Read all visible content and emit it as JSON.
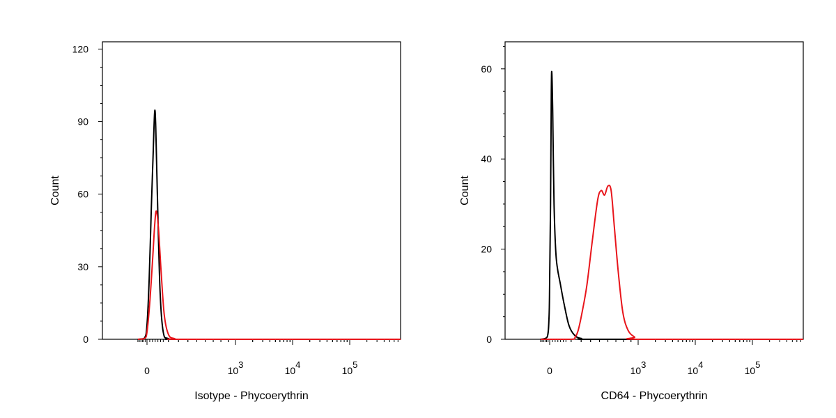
{
  "chart_data": [
    {
      "type": "line",
      "title": "",
      "xlabel": "Isotype - Phycoerythrin",
      "ylabel": "Count",
      "x_scale": "biexponential",
      "x_ticks": [
        {
          "value": 0,
          "label": "0",
          "exp": ""
        },
        {
          "value": 1000,
          "label": "10",
          "exp": "3"
        },
        {
          "value": 10000,
          "label": "10",
          "exp": "4"
        },
        {
          "value": 100000,
          "label": "10",
          "exp": "5"
        }
      ],
      "y_ticks": [
        0,
        30,
        60,
        90,
        120
      ],
      "ylim": [
        0,
        123
      ],
      "grid": false,
      "legend": "none",
      "series": [
        {
          "color": "#000000",
          "points": [
            [
              -150,
              0
            ],
            [
              -40,
              0.5
            ],
            [
              0,
              6
            ],
            [
              20,
              25
            ],
            [
              40,
              55
            ],
            [
              55,
              75
            ],
            [
              70,
              94
            ],
            [
              80,
              88
            ],
            [
              95,
              60
            ],
            [
              120,
              20
            ],
            [
              150,
              3
            ],
            [
              200,
              0.3
            ],
            [
              400,
              0
            ],
            [
              1000000,
              0
            ]
          ]
        },
        {
          "color": "#e8151b",
          "points": [
            [
              -150,
              0
            ],
            [
              -40,
              0.3
            ],
            [
              0,
              3
            ],
            [
              25,
              15
            ],
            [
              50,
              32
            ],
            [
              70,
              47
            ],
            [
              85,
              53
            ],
            [
              105,
              46
            ],
            [
              130,
              28
            ],
            [
              160,
              10
            ],
            [
              200,
              2
            ],
            [
              260,
              0.3
            ],
            [
              400,
              0
            ],
            [
              1000000,
              0
            ]
          ]
        }
      ]
    },
    {
      "type": "line",
      "title": "",
      "xlabel": "CD64 - Phycoerythrin",
      "ylabel": "Count",
      "x_scale": "biexponential",
      "x_ticks": [
        {
          "value": 0,
          "label": "0",
          "exp": ""
        },
        {
          "value": 1000,
          "label": "10",
          "exp": "3"
        },
        {
          "value": 10000,
          "label": "10",
          "exp": "4"
        },
        {
          "value": 100000,
          "label": "10",
          "exp": "5"
        }
      ],
      "y_ticks": [
        0,
        20,
        40,
        60
      ],
      "ylim": [
        0,
        66
      ],
      "grid": false,
      "legend": "none",
      "series": [
        {
          "color": "#000000",
          "points": [
            [
              -150,
              0
            ],
            [
              -40,
              0.5
            ],
            [
              -10,
              5
            ],
            [
              0,
              13
            ],
            [
              8,
              30
            ],
            [
              15,
              55
            ],
            [
              20,
              59
            ],
            [
              28,
              50
            ],
            [
              40,
              30
            ],
            [
              60,
              18
            ],
            [
              100,
              12
            ],
            [
              140,
              7
            ],
            [
              180,
              3
            ],
            [
              230,
              1
            ],
            [
              300,
              0.2
            ],
            [
              500,
              0
            ],
            [
              1000000,
              0
            ]
          ]
        },
        {
          "color": "#e8151b",
          "points": [
            [
              -150,
              0
            ],
            [
              200,
              0
            ],
            [
              240,
              0.5
            ],
            [
              270,
              2
            ],
            [
              310,
              6
            ],
            [
              360,
              12
            ],
            [
              420,
              22
            ],
            [
              480,
              31
            ],
            [
              520,
              33
            ],
            [
              560,
              32
            ],
            [
              600,
              34
            ],
            [
              640,
              33
            ],
            [
              680,
              25
            ],
            [
              730,
              15
            ],
            [
              790,
              6
            ],
            [
              860,
              2
            ],
            [
              950,
              0.5
            ],
            [
              1100,
              0
            ],
            [
              1000000,
              0
            ]
          ]
        }
      ]
    }
  ]
}
